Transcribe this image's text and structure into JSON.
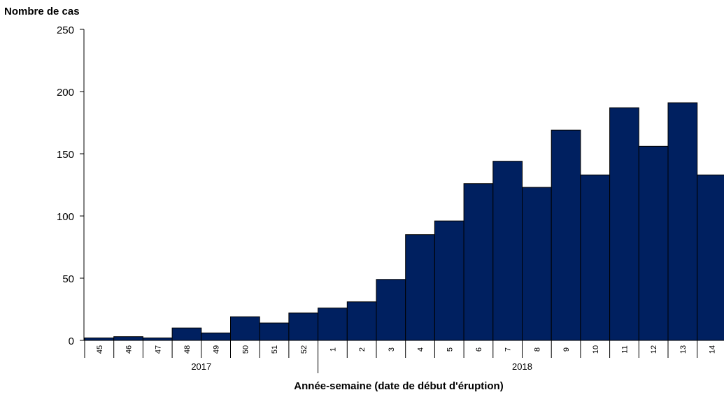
{
  "chart_data": {
    "type": "bar",
    "title": "",
    "ylabel": "Nombre de cas",
    "xlabel": "Année-semaine (date de début d'éruption)",
    "ylim": [
      0,
      250
    ],
    "yticks": [
      "0",
      "50",
      "100",
      "150",
      "200",
      "250"
    ],
    "categories": [
      "45",
      "46",
      "47",
      "48",
      "49",
      "50",
      "51",
      "52",
      "1",
      "2",
      "3",
      "4",
      "5",
      "6",
      "7",
      "8",
      "9",
      "10",
      "11",
      "12",
      "13",
      "14"
    ],
    "values": [
      2,
      3,
      2,
      10,
      6,
      19,
      14,
      22,
      26,
      31,
      49,
      85,
      96,
      126,
      144,
      123,
      169,
      133,
      187,
      156,
      191,
      133
    ],
    "year_groups": [
      {
        "label": "2017",
        "count": 8
      },
      {
        "label": "2018",
        "count": 14
      }
    ],
    "bar_color": "#002060",
    "grid": false,
    "legend": "none"
  }
}
